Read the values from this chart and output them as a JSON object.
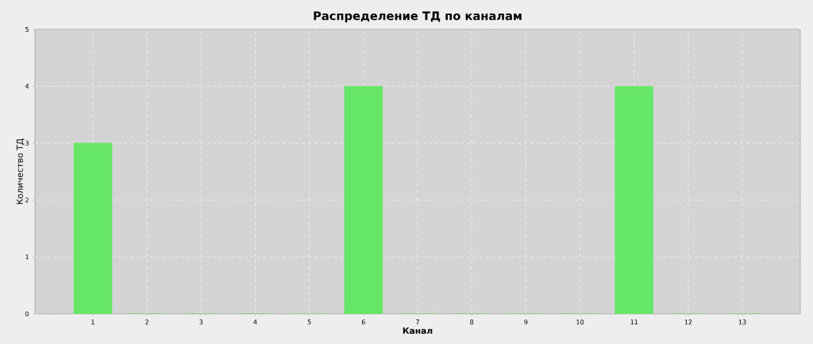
{
  "chart_data": {
    "type": "bar",
    "title": "Распределение ТД по каналам",
    "xlabel": "Канал",
    "ylabel": "Количество ТД",
    "categories": [
      "1",
      "2",
      "3",
      "4",
      "5",
      "6",
      "7",
      "8",
      "9",
      "10",
      "11",
      "12",
      "13"
    ],
    "values": [
      3,
      0,
      0,
      0,
      0,
      4,
      0,
      0,
      0,
      0,
      4,
      0,
      0
    ],
    "color": "#66e666",
    "ylim": [
      0,
      5
    ],
    "yticks": [
      0,
      1,
      2,
      3,
      4,
      5
    ],
    "grid": true
  }
}
